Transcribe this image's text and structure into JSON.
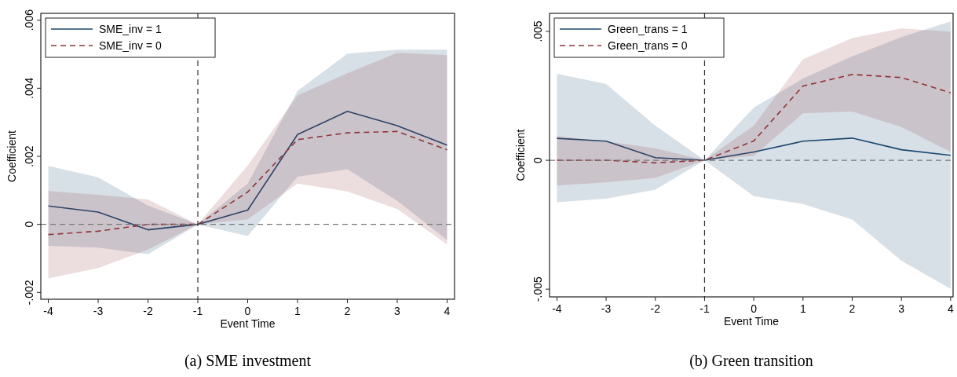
{
  "chart_data": [
    {
      "type": "line",
      "title": "(a) SME investment",
      "xlabel": "Event Time",
      "ylabel": "Coefficient",
      "x": [
        -4,
        -3,
        -2,
        -1,
        0,
        1,
        2,
        3,
        4
      ],
      "xlim": [
        -4.15,
        4.15
      ],
      "xticks": [
        -4,
        -3,
        -2,
        -1,
        0,
        1,
        2,
        3,
        4
      ],
      "ylim": [
        -0.0022,
        0.0062
      ],
      "yticks": [
        {
          "value": -0.002,
          "label": "-.002"
        },
        0,
        {
          "value": 0.002,
          "label": ".002"
        },
        {
          "value": 0.004,
          "label": ".004"
        },
        {
          "value": 0.006,
          "label": ".006"
        }
      ],
      "legend": "top left",
      "ref_lines": [
        {
          "axis": "x",
          "value": -1,
          "color": "#333333",
          "line_style": "dashed"
        },
        {
          "axis": "y",
          "value": 0,
          "color": "#777777",
          "line_style": "dashed"
        }
      ],
      "series": [
        {
          "name": "SME_inv = 1",
          "color": "#1a476f",
          "line_style": "solid",
          "values": [
            0.00054,
            0.00036,
            -0.00016,
            0,
            0.00042,
            0.00264,
            0.00332,
            0.0029,
            0.00233
          ],
          "lower": [
            -0.00063,
            -0.00068,
            -0.00088,
            0,
            -0.00034,
            0.0014,
            0.00162,
            0.00069,
            -0.00046
          ],
          "upper": [
            0.00172,
            0.00138,
            0.00055,
            0,
            0.0012,
            0.00392,
            0.00502,
            0.00513,
            0.00513
          ]
        },
        {
          "name": "SME_inv = 0",
          "color": "#90353b",
          "line_style": "dashed",
          "values": [
            -0.0003,
            -0.0002,
            0,
            0,
            0.00095,
            0.00249,
            0.00269,
            0.00273,
            0.00219
          ],
          "lower": [
            -0.00159,
            -0.00128,
            -0.00074,
            0,
            0.00015,
            0.0012,
            0.00097,
            0.00045,
            -0.00059
          ],
          "upper": [
            0.00098,
            0.00087,
            0.00073,
            0,
            0.00173,
            0.00379,
            0.00444,
            0.00504,
            0.00497
          ]
        }
      ]
    },
    {
      "type": "line",
      "title": "(b) Green transition",
      "xlabel": "Event Time",
      "ylabel": "Coefficient",
      "x": [
        -4,
        -3,
        -2,
        -1,
        0,
        1,
        2,
        3,
        4
      ],
      "xlim": [
        -4.15,
        4.05
      ],
      "xticks": [
        -4,
        -3,
        -2,
        -1,
        0,
        1,
        2,
        3,
        4
      ],
      "ylim": [
        -0.0053,
        0.0057
      ],
      "yticks": [
        {
          "value": -0.005,
          "label": "-.005"
        },
        0,
        {
          "value": 0.005,
          "label": ".005"
        }
      ],
      "legend": "top left",
      "ref_lines": [
        {
          "axis": "x",
          "value": -1,
          "color": "#333333",
          "line_style": "dashed"
        },
        {
          "axis": "y",
          "value": 0,
          "color": "#777777",
          "line_style": "dashed"
        }
      ],
      "series": [
        {
          "name": "Green_trans = 1",
          "color": "#1a476f",
          "line_style": "solid",
          "values": [
            0.00085,
            0.00074,
            0.0001,
            0,
            0.00032,
            0.00074,
            0.00086,
            0.00041,
            0.00019
          ],
          "lower": [
            -0.00163,
            -0.00149,
            -0.00114,
            0,
            -0.00139,
            -0.0017,
            -0.0023,
            -0.0039,
            -0.00499
          ],
          "upper": [
            0.00335,
            0.00296,
            0.00134,
            0,
            0.00204,
            0.00317,
            0.00403,
            0.00478,
            0.00539
          ]
        },
        {
          "name": "Green_trans = 0",
          "color": "#90353b",
          "line_style": "dashed",
          "values": [
            0,
            0,
            -0.0001,
            0,
            0.00075,
            0.00288,
            0.00333,
            0.00321,
            0.00262
          ],
          "lower": [
            -0.00097,
            -0.00086,
            -0.00068,
            0,
            0.00017,
            0.00182,
            0.00189,
            0.00129,
            0.00032
          ],
          "upper": [
            0.00094,
            0.00073,
            0.00047,
            0,
            0.00134,
            0.00392,
            0.00474,
            0.00511,
            0.00499
          ]
        }
      ]
    }
  ]
}
